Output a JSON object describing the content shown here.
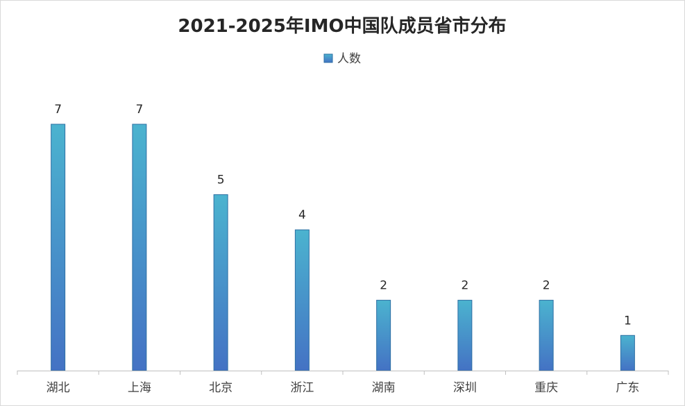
{
  "chart_data": {
    "type": "bar",
    "title": "2021-2025年IMO中国队成员省市分布",
    "categories": [
      "湖北",
      "上海",
      "北京",
      "浙江",
      "湖南",
      "深圳",
      "重庆",
      "广东"
    ],
    "series": [
      {
        "name": "人数",
        "values": [
          7,
          7,
          5,
          4,
          2,
          2,
          2,
          1
        ]
      }
    ],
    "ylim": [
      0,
      8.3
    ],
    "legend_position": "top-center",
    "grid": false,
    "colors": {
      "bar_top": "#4bb3cf",
      "bar_bottom": "#4472c4",
      "bar_border": "#2e6fa3",
      "axis": "#bfbfbf"
    }
  }
}
